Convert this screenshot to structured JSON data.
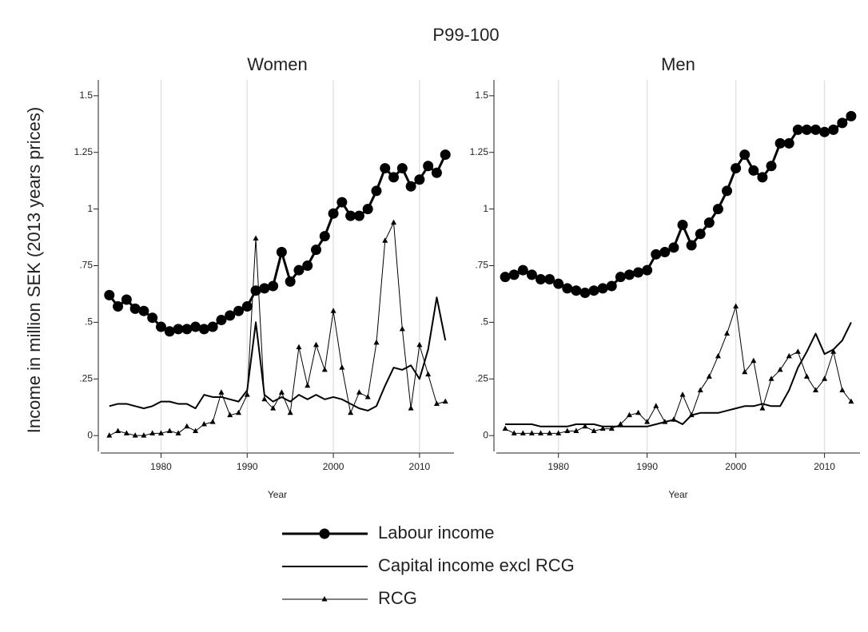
{
  "title": "P99-100",
  "y_label": "Income in million SEK (2013 years prices)",
  "chart_data": [
    {
      "type": "line",
      "title": "Women",
      "x_label": "Year",
      "x": [
        1974,
        1975,
        1976,
        1977,
        1978,
        1979,
        1980,
        1981,
        1982,
        1983,
        1984,
        1985,
        1986,
        1987,
        1988,
        1989,
        1990,
        1991,
        1992,
        1993,
        1994,
        1995,
        1996,
        1997,
        1998,
        1999,
        2000,
        2001,
        2002,
        2003,
        2004,
        2005,
        2006,
        2007,
        2008,
        2009,
        2010,
        2011,
        2012,
        2013
      ],
      "xlim": [
        1973,
        2014
      ],
      "ylim": [
        -0.07,
        1.57
      ],
      "xticks": [
        1980,
        1990,
        2000,
        2010
      ],
      "yticks": [
        0,
        {
          "value": 0.25,
          "label": ".25"
        },
        {
          "value": 0.5,
          "label": ".5"
        },
        {
          "value": 0.75,
          "label": ".75"
        },
        1,
        1.25,
        1.5
      ],
      "grid": true,
      "series": [
        {
          "name": "Labour income",
          "color": "#000000",
          "marker": "circle",
          "values": [
            0.62,
            0.57,
            0.6,
            0.56,
            0.55,
            0.52,
            0.48,
            0.46,
            0.47,
            0.47,
            0.48,
            0.47,
            0.48,
            0.51,
            0.53,
            0.55,
            0.57,
            0.64,
            0.65,
            0.66,
            0.81,
            0.68,
            0.73,
            0.75,
            0.82,
            0.88,
            0.98,
            1.03,
            0.97,
            0.97,
            1.0,
            1.08,
            1.18,
            1.14,
            1.18,
            1.1,
            1.13,
            1.19,
            1.16,
            1.24
          ]
        },
        {
          "name": "Capital income excl RCG",
          "color": "#000000",
          "marker": "none",
          "values": [
            0.13,
            0.14,
            0.14,
            0.13,
            0.12,
            0.13,
            0.15,
            0.15,
            0.14,
            0.14,
            0.12,
            0.18,
            0.17,
            0.17,
            0.16,
            0.15,
            0.2,
            0.5,
            0.18,
            0.15,
            0.17,
            0.15,
            0.18,
            0.16,
            0.18,
            0.16,
            0.17,
            0.16,
            0.14,
            0.12,
            0.11,
            0.13,
            0.22,
            0.3,
            0.29,
            0.31,
            0.25,
            0.38,
            0.61,
            0.42
          ]
        },
        {
          "name": "RCG",
          "color": "#000000",
          "marker": "triangle",
          "values": [
            0,
            0.02,
            0.01,
            0,
            0,
            0.01,
            0.01,
            0.02,
            0.01,
            0.04,
            0.02,
            0.05,
            0.06,
            0.19,
            0.09,
            0.1,
            0.18,
            0.87,
            0.16,
            0.12,
            0.19,
            0.1,
            0.39,
            0.22,
            0.4,
            0.29,
            0.55,
            0.3,
            0.1,
            0.19,
            0.17,
            0.41,
            0.86,
            0.94,
            0.47,
            0.12,
            0.4,
            0.27,
            0.14,
            0.15
          ]
        }
      ]
    },
    {
      "type": "line",
      "title": "Men",
      "x_label": "Year",
      "x": [
        1974,
        1975,
        1976,
        1977,
        1978,
        1979,
        1980,
        1981,
        1982,
        1983,
        1984,
        1985,
        1986,
        1987,
        1988,
        1989,
        1990,
        1991,
        1992,
        1993,
        1994,
        1995,
        1996,
        1997,
        1998,
        1999,
        2000,
        2001,
        2002,
        2003,
        2004,
        2005,
        2006,
        2007,
        2008,
        2009,
        2010,
        2011,
        2012,
        2013
      ],
      "xlim": [
        1973,
        2014
      ],
      "ylim": [
        -0.07,
        1.57
      ],
      "xticks": [
        1980,
        1990,
        2000,
        2010
      ],
      "yticks": [
        0,
        {
          "value": 0.25,
          "label": ".25"
        },
        {
          "value": 0.5,
          "label": ".5"
        },
        {
          "value": 0.75,
          "label": ".75"
        },
        1,
        1.25,
        1.5
      ],
      "grid": true,
      "series": [
        {
          "name": "Labour income",
          "color": "#000000",
          "marker": "circle",
          "values": [
            0.7,
            0.71,
            0.73,
            0.71,
            0.69,
            0.69,
            0.67,
            0.65,
            0.64,
            0.63,
            0.64,
            0.65,
            0.66,
            0.7,
            0.71,
            0.72,
            0.73,
            0.8,
            0.81,
            0.83,
            0.93,
            0.84,
            0.89,
            0.94,
            1.0,
            1.08,
            1.18,
            1.24,
            1.17,
            1.14,
            1.19,
            1.29,
            1.29,
            1.35,
            1.35,
            1.35,
            1.34,
            1.35,
            1.38,
            1.41
          ]
        },
        {
          "name": "Capital income excl RCG",
          "color": "#000000",
          "marker": "none",
          "values": [
            0.05,
            0.05,
            0.05,
            0.05,
            0.04,
            0.04,
            0.04,
            0.04,
            0.05,
            0.05,
            0.05,
            0.04,
            0.04,
            0.04,
            0.04,
            0.04,
            0.04,
            0.05,
            0.06,
            0.07,
            0.05,
            0.09,
            0.1,
            0.1,
            0.1,
            0.11,
            0.12,
            0.13,
            0.13,
            0.14,
            0.13,
            0.13,
            0.2,
            0.3,
            0.37,
            0.45,
            0.36,
            0.38,
            0.42,
            0.5
          ]
        },
        {
          "name": "RCG",
          "color": "#000000",
          "marker": "triangle",
          "values": [
            0.03,
            0.01,
            0.01,
            0.01,
            0.01,
            0.01,
            0.01,
            0.02,
            0.02,
            0.04,
            0.02,
            0.03,
            0.03,
            0.05,
            0.09,
            0.1,
            0.06,
            0.13,
            0.06,
            0.07,
            0.18,
            0.09,
            0.2,
            0.26,
            0.35,
            0.45,
            0.57,
            0.28,
            0.33,
            0.12,
            0.25,
            0.29,
            0.35,
            0.37,
            0.26,
            0.2,
            0.25,
            0.37,
            0.2,
            0.15
          ]
        }
      ]
    }
  ]
}
